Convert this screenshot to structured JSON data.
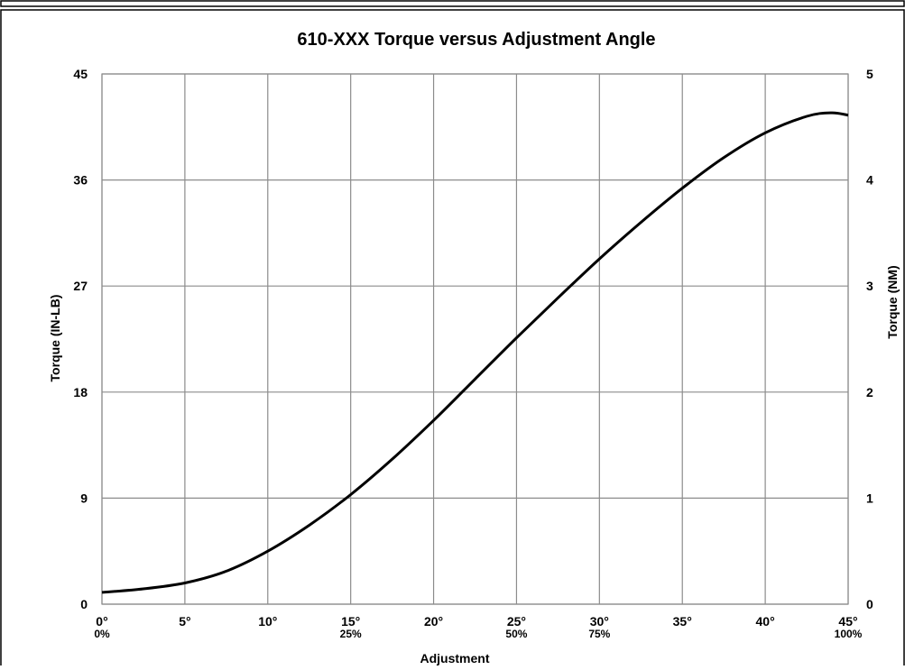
{
  "chart_data": {
    "type": "line",
    "title": "610-XXX Torque versus Adjustment Angle",
    "xlabel": "Adjustment",
    "ylabel": "Torque (IN-LB)",
    "y2label": "Torque (NM)",
    "xlim": [
      0,
      45
    ],
    "ylim": [
      0,
      45
    ],
    "y2lim": [
      0,
      5
    ],
    "grid": true,
    "x_ticks": [
      "0°",
      "5°",
      "10°",
      "15°",
      "20°",
      "25°",
      "30°",
      "35°",
      "40°",
      "45°"
    ],
    "x_ticks_secondary": [
      "0%",
      "",
      "",
      "25%",
      "",
      "50%",
      "75%",
      "",
      "",
      "100%"
    ],
    "y_ticks": [
      "0",
      "9",
      "18",
      "27",
      "36",
      "45"
    ],
    "y2_ticks": [
      "0",
      "1",
      "2",
      "3",
      "4",
      "5"
    ],
    "series": [
      {
        "x": [
          0,
          2.5,
          5,
          7.5,
          10,
          12.5,
          15,
          17.5,
          20,
          22.5,
          25,
          27.5,
          30,
          32.5,
          35,
          37.5,
          40,
          42.5,
          44,
          45
        ],
        "y": [
          1.0,
          1.3,
          1.8,
          2.8,
          4.5,
          6.7,
          9.3,
          12.3,
          15.6,
          19.1,
          22.6,
          26.0,
          29.3,
          32.4,
          35.3,
          37.9,
          40.0,
          41.4,
          41.7,
          41.5
        ]
      }
    ]
  }
}
